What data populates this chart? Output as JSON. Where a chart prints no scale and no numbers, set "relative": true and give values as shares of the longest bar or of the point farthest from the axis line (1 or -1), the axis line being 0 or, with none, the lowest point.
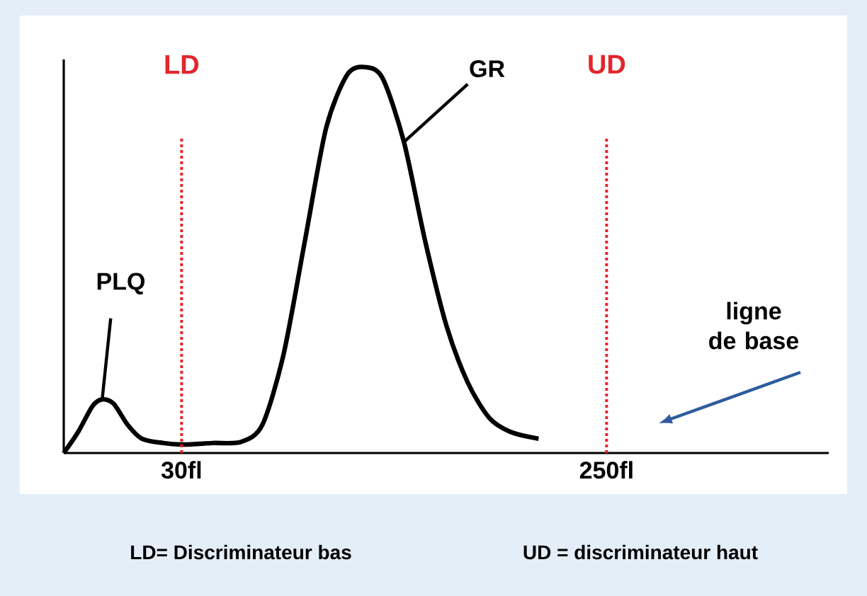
{
  "chart_data": {
    "type": "line",
    "relative": true,
    "x": [
      -31,
      -23.5,
      -16.2,
      -11.1,
      -5.2,
      2.1,
      9.5,
      20.5,
      31.5,
      46.1,
      60.8,
      71.8,
      82.8,
      93.8,
      104.8,
      115.8,
      125.3,
      134.1,
      145.1,
      156.1,
      167.1,
      178.1,
      189.1,
      200.1,
      214.8
    ],
    "series": [
      {
        "color": "#000000",
        "values": [
          0,
          0.055,
          0.121,
          0.139,
          0.128,
          0.073,
          0.037,
          0.026,
          0.022,
          0.026,
          0.029,
          0.073,
          0.256,
          0.549,
          0.842,
          0.981,
          1.0,
          0.971,
          0.806,
          0.549,
          0.33,
          0.183,
          0.092,
          0.055,
          0.037
        ]
      }
    ],
    "xlim": [
      -31,
      365
    ],
    "xticks": [
      {
        "value": 30,
        "label": "30fl"
      },
      {
        "value": 250,
        "label": "250fl"
      }
    ],
    "ref_lines": [
      {
        "axis": "x",
        "value": 30,
        "label": "LD",
        "color": "#e3262c",
        "line_style": "dotted"
      },
      {
        "axis": "x",
        "value": 250,
        "label": "UD",
        "color": "#e3262c",
        "line_style": "dotted"
      }
    ],
    "annotations": [
      {
        "text": "PLQ",
        "x": -11.1,
        "y": 0.139
      },
      {
        "text": "GR",
        "x": 145.1,
        "y": 0.806
      },
      "ligne de base",
      "LD= Discriminateur bas",
      "UD = discriminateur haut"
    ],
    "grid": false,
    "marker": "none",
    "line_style": "solid"
  }
}
